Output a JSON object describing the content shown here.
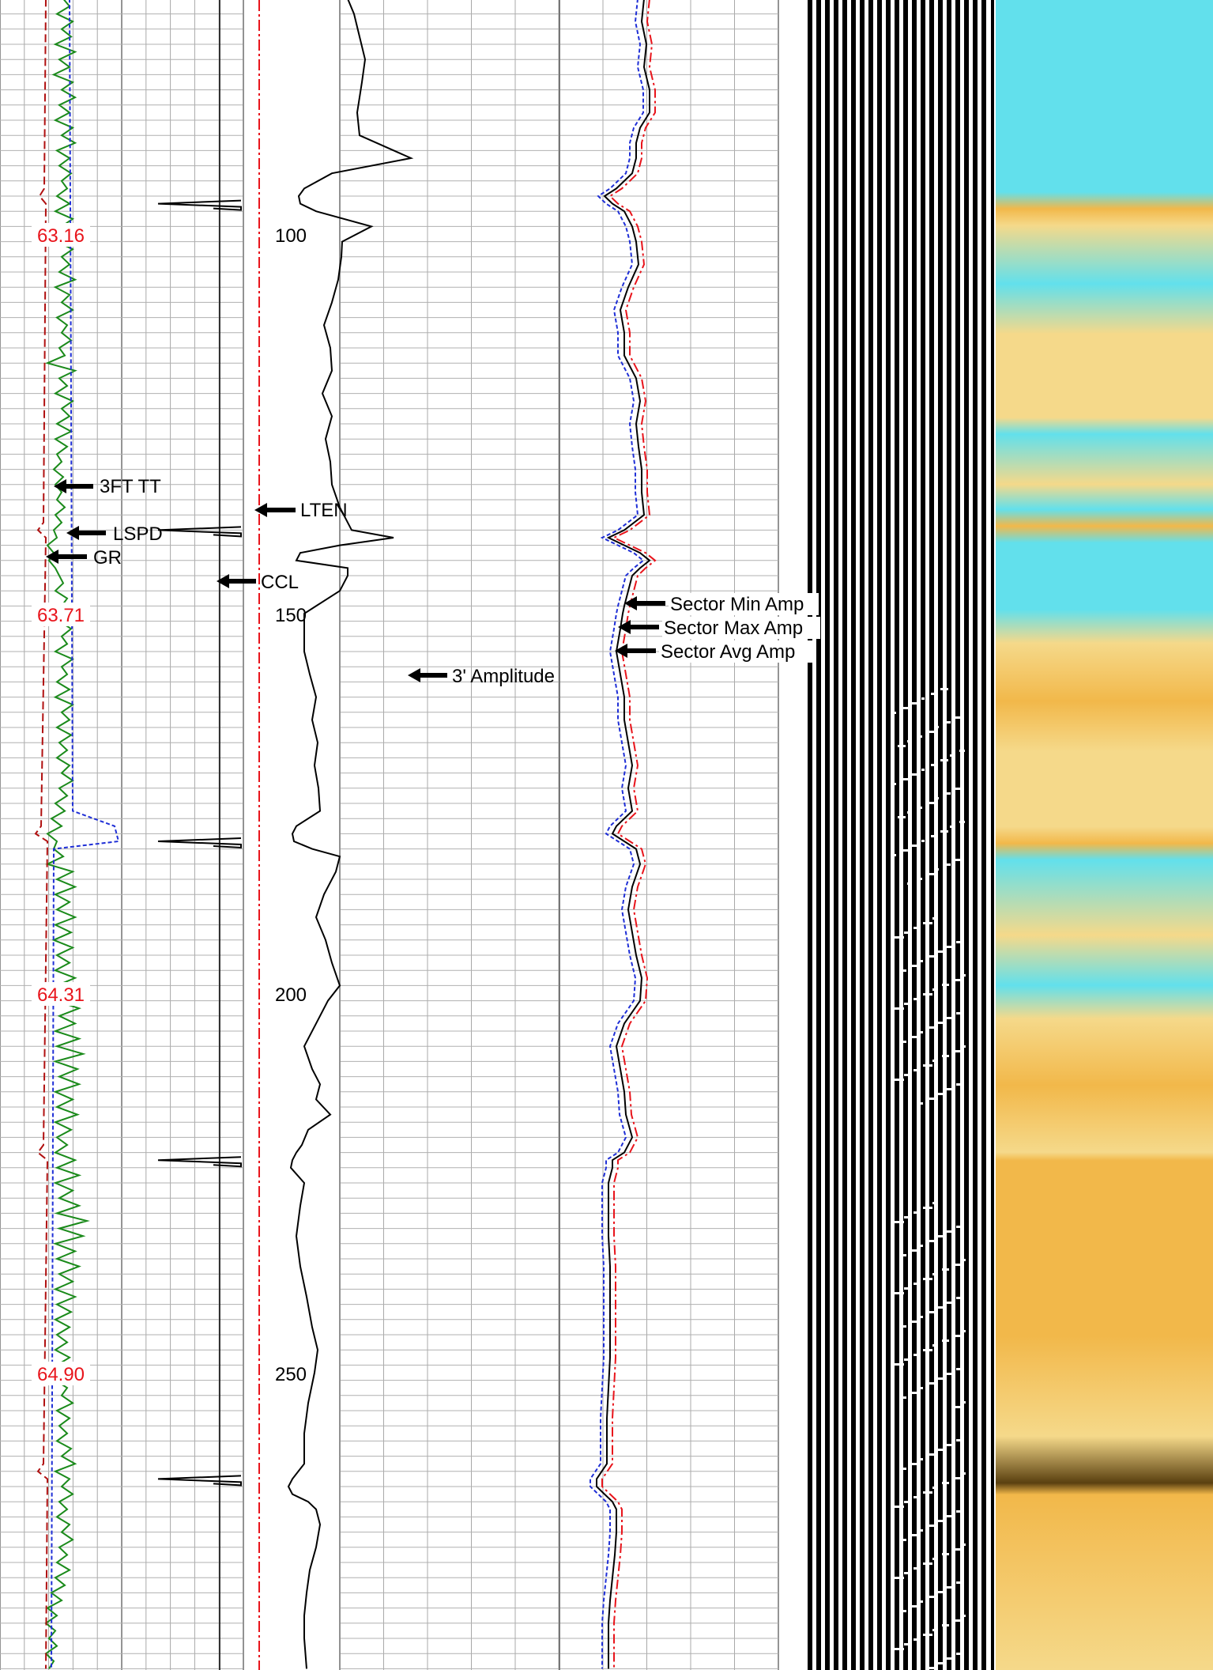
{
  "chart_data": {
    "type": "line",
    "title": "",
    "depth_labels": [
      {
        "depth": 100,
        "text": "100"
      },
      {
        "depth": 150,
        "text": "150"
      },
      {
        "depth": 200,
        "text": "200"
      },
      {
        "depth": 250,
        "text": "250"
      }
    ],
    "tension_labels": [
      {
        "depth": 100,
        "text": "63.16"
      },
      {
        "depth": 150,
        "text": "63.71"
      },
      {
        "depth": 200,
        "text": "64.31"
      },
      {
        "depth": 250,
        "text": "64.90"
      }
    ],
    "y_range": [
      69,
      289
    ],
    "colors": {
      "gr": "#1a8a1a",
      "lspd": "#1f2fd6",
      "tt": "#b01010",
      "lten": "#e8141b",
      "black": "#000000",
      "cyan": "#62e0ec",
      "yellow": "#f5d98a",
      "orange": "#f2b84a"
    },
    "curve_labels": {
      "tt": "3FT TT",
      "lspd": "LSPD",
      "gr": "GR",
      "lten": "LTEN",
      "ccl": "CCL",
      "amp3": "3' Amplitude",
      "smin": "Sector Min Amp",
      "smax": "Sector Max Amp",
      "savg": "Sector Avg Amp"
    },
    "ccl_spikes": [
      96,
      139,
      180,
      222,
      264
    ],
    "amp3_points": [
      [
        69,
        440
      ],
      [
        71,
        448
      ],
      [
        74,
        455
      ],
      [
        77,
        462
      ],
      [
        80,
        458
      ],
      [
        84,
        452
      ],
      [
        87,
        455
      ],
      [
        90,
        520
      ],
      [
        92,
        420
      ],
      [
        94,
        385
      ],
      [
        95,
        378
      ],
      [
        96,
        380
      ],
      [
        97,
        400
      ],
      [
        99,
        470
      ],
      [
        101,
        433
      ],
      [
        103,
        432
      ],
      [
        106,
        428
      ],
      [
        109,
        420
      ],
      [
        112,
        410
      ],
      [
        115,
        418
      ],
      [
        118,
        420
      ],
      [
        121,
        408
      ],
      [
        124,
        420
      ],
      [
        127,
        412
      ],
      [
        130,
        418
      ],
      [
        133,
        420
      ],
      [
        136,
        430
      ],
      [
        139,
        445
      ],
      [
        140,
        498
      ],
      [
        141,
        430
      ],
      [
        142,
        380
      ],
      [
        143,
        375
      ],
      [
        144,
        440
      ],
      [
        145,
        440
      ],
      [
        147,
        430
      ],
      [
        149,
        400
      ],
      [
        150,
        385
      ],
      [
        152,
        385
      ],
      [
        155,
        385
      ],
      [
        158,
        392
      ],
      [
        161,
        400
      ],
      [
        164,
        395
      ],
      [
        167,
        402
      ],
      [
        170,
        398
      ],
      [
        173,
        403
      ],
      [
        176,
        405
      ],
      [
        178,
        375
      ],
      [
        179,
        370
      ],
      [
        180,
        372
      ],
      [
        181,
        395
      ],
      [
        182,
        430
      ],
      [
        184,
        425
      ],
      [
        187,
        410
      ],
      [
        190,
        400
      ],
      [
        193,
        412
      ],
      [
        196,
        420
      ],
      [
        199,
        430
      ],
      [
        201,
        415
      ],
      [
        204,
        400
      ],
      [
        207,
        385
      ],
      [
        210,
        395
      ],
      [
        212,
        405
      ],
      [
        214,
        400
      ],
      [
        216,
        418
      ],
      [
        218,
        390
      ],
      [
        220,
        382
      ],
      [
        221,
        375
      ],
      [
        222,
        370
      ],
      [
        223,
        368
      ],
      [
        225,
        385
      ],
      [
        228,
        380
      ],
      [
        232,
        375
      ],
      [
        236,
        380
      ],
      [
        240,
        388
      ],
      [
        244,
        395
      ],
      [
        247,
        402
      ],
      [
        250,
        398
      ],
      [
        254,
        390
      ],
      [
        258,
        385
      ],
      [
        262,
        385
      ],
      [
        264,
        370
      ],
      [
        265,
        365
      ],
      [
        266,
        370
      ],
      [
        267,
        390
      ],
      [
        268,
        400
      ],
      [
        270,
        405
      ],
      [
        273,
        400
      ],
      [
        276,
        392
      ],
      [
        279,
        388
      ],
      [
        282,
        385
      ],
      [
        285,
        385
      ],
      [
        289,
        388
      ]
    ],
    "sector_avg_points": [
      [
        69,
        815
      ],
      [
        72,
        812
      ],
      [
        75,
        818
      ],
      [
        78,
        815
      ],
      [
        81,
        822
      ],
      [
        84,
        822
      ],
      [
        86,
        810
      ],
      [
        88,
        805
      ],
      [
        90,
        805
      ],
      [
        92,
        800
      ],
      [
        94,
        780
      ],
      [
        95,
        765
      ],
      [
        96,
        775
      ],
      [
        97,
        790
      ],
      [
        99,
        800
      ],
      [
        101,
        805
      ],
      [
        104,
        808
      ],
      [
        107,
        795
      ],
      [
        110,
        785
      ],
      [
        113,
        790
      ],
      [
        116,
        790
      ],
      [
        119,
        805
      ],
      [
        122,
        810
      ],
      [
        125,
        805
      ],
      [
        128,
        808
      ],
      [
        131,
        812
      ],
      [
        134,
        812
      ],
      [
        137,
        815
      ],
      [
        139,
        790
      ],
      [
        140,
        770
      ],
      [
        141,
        790
      ],
      [
        142,
        810
      ],
      [
        143,
        822
      ],
      [
        144,
        810
      ],
      [
        145,
        800
      ],
      [
        147,
        795
      ],
      [
        149,
        790
      ],
      [
        150,
        788
      ],
      [
        152,
        785
      ],
      [
        155,
        780
      ],
      [
        158,
        785
      ],
      [
        161,
        790
      ],
      [
        164,
        790
      ],
      [
        167,
        795
      ],
      [
        170,
        800
      ],
      [
        173,
        795
      ],
      [
        176,
        800
      ],
      [
        178,
        780
      ],
      [
        179,
        775
      ],
      [
        180,
        790
      ],
      [
        181,
        805
      ],
      [
        183,
        810
      ],
      [
        186,
        800
      ],
      [
        189,
        795
      ],
      [
        192,
        800
      ],
      [
        195,
        805
      ],
      [
        198,
        812
      ],
      [
        201,
        810
      ],
      [
        204,
        790
      ],
      [
        207,
        780
      ],
      [
        210,
        785
      ],
      [
        213,
        790
      ],
      [
        216,
        792
      ],
      [
        219,
        800
      ],
      [
        221,
        790
      ],
      [
        222,
        775
      ],
      [
        223,
        775
      ],
      [
        225,
        770
      ],
      [
        228,
        770
      ],
      [
        232,
        770
      ],
      [
        236,
        772
      ],
      [
        240,
        772
      ],
      [
        244,
        772
      ],
      [
        248,
        772
      ],
      [
        252,
        770
      ],
      [
        256,
        768
      ],
      [
        260,
        768
      ],
      [
        262,
        768
      ],
      [
        264,
        755
      ],
      [
        265,
        755
      ],
      [
        266,
        765
      ],
      [
        267,
        775
      ],
      [
        268,
        780
      ],
      [
        271,
        780
      ],
      [
        274,
        778
      ],
      [
        277,
        775
      ],
      [
        280,
        772
      ],
      [
        283,
        770
      ],
      [
        286,
        770
      ],
      [
        289,
        770
      ]
    ],
    "gr_points": [
      [
        69,
        80
      ],
      [
        70,
        88
      ],
      [
        71,
        72
      ],
      [
        72,
        92
      ],
      [
        73,
        78
      ],
      [
        74,
        90
      ],
      [
        75,
        70
      ],
      [
        76,
        95
      ],
      [
        77,
        75
      ],
      [
        78,
        88
      ],
      [
        79,
        68
      ],
      [
        80,
        92
      ],
      [
        81,
        78
      ],
      [
        82,
        95
      ],
      [
        83,
        75
      ],
      [
        84,
        88
      ],
      [
        85,
        70
      ],
      [
        86,
        92
      ],
      [
        87,
        78
      ],
      [
        88,
        95
      ],
      [
        89,
        72
      ],
      [
        90,
        88
      ],
      [
        91,
        75
      ],
      [
        92,
        90
      ],
      [
        93,
        78
      ],
      [
        94,
        85
      ],
      [
        95,
        72
      ],
      [
        96,
        88
      ],
      [
        97,
        70
      ],
      [
        98,
        92
      ],
      [
        99,
        78
      ],
      [
        100,
        85
      ],
      [
        101,
        72
      ],
      [
        102,
        92
      ],
      [
        103,
        78
      ],
      [
        104,
        88
      ],
      [
        105,
        75
      ],
      [
        106,
        95
      ],
      [
        107,
        70
      ],
      [
        108,
        88
      ],
      [
        109,
        78
      ],
      [
        110,
        92
      ],
      [
        111,
        72
      ],
      [
        112,
        85
      ],
      [
        113,
        78
      ],
      [
        114,
        90
      ],
      [
        115,
        75
      ],
      [
        116,
        82
      ],
      [
        117,
        60
      ],
      [
        118,
        95
      ],
      [
        119,
        75
      ],
      [
        120,
        85
      ],
      [
        121,
        70
      ],
      [
        122,
        92
      ],
      [
        123,
        78
      ],
      [
        124,
        88
      ],
      [
        125,
        72
      ],
      [
        126,
        90
      ],
      [
        127,
        70
      ],
      [
        128,
        85
      ],
      [
        129,
        72
      ],
      [
        130,
        78
      ],
      [
        131,
        68
      ],
      [
        132,
        80
      ],
      [
        133,
        70
      ],
      [
        134,
        78
      ],
      [
        135,
        72
      ],
      [
        136,
        82
      ],
      [
        137,
        70
      ],
      [
        138,
        78
      ],
      [
        139,
        68
      ],
      [
        140,
        72
      ],
      [
        141,
        60
      ],
      [
        142,
        68
      ],
      [
        143,
        62
      ],
      [
        144,
        70
      ],
      [
        145,
        75
      ],
      [
        146,
        80
      ],
      [
        147,
        70
      ],
      [
        148,
        85
      ],
      [
        149,
        78
      ],
      [
        150,
        82
      ],
      [
        151,
        75
      ],
      [
        152,
        90
      ],
      [
        153,
        78
      ],
      [
        154,
        85
      ],
      [
        155,
        70
      ],
      [
        156,
        92
      ],
      [
        157,
        78
      ],
      [
        158,
        85
      ],
      [
        159,
        72
      ],
      [
        160,
        88
      ],
      [
        161,
        70
      ],
      [
        162,
        92
      ],
      [
        163,
        78
      ],
      [
        164,
        88
      ],
      [
        165,
        72
      ],
      [
        166,
        90
      ],
      [
        167,
        75
      ],
      [
        168,
        85
      ],
      [
        169,
        72
      ],
      [
        170,
        88
      ],
      [
        171,
        78
      ],
      [
        172,
        92
      ],
      [
        173,
        75
      ],
      [
        174,
        85
      ],
      [
        175,
        70
      ],
      [
        176,
        82
      ],
      [
        177,
        65
      ],
      [
        178,
        78
      ],
      [
        179,
        60
      ],
      [
        180,
        72
      ],
      [
        181,
        68
      ],
      [
        182,
        80
      ],
      [
        183,
        60
      ],
      [
        184,
        92
      ],
      [
        185,
        72
      ],
      [
        186,
        95
      ],
      [
        187,
        70
      ],
      [
        188,
        88
      ],
      [
        189,
        72
      ],
      [
        190,
        95
      ],
      [
        191,
        70
      ],
      [
        192,
        90
      ],
      [
        193,
        68
      ],
      [
        194,
        92
      ],
      [
        195,
        72
      ],
      [
        196,
        88
      ],
      [
        197,
        70
      ],
      [
        198,
        95
      ],
      [
        199,
        72
      ],
      [
        200,
        90
      ],
      [
        201,
        70
      ],
      [
        202,
        100
      ],
      [
        203,
        75
      ],
      [
        204,
        95
      ],
      [
        205,
        70
      ],
      [
        206,
        100
      ],
      [
        207,
        72
      ],
      [
        208,
        105
      ],
      [
        209,
        70
      ],
      [
        210,
        98
      ],
      [
        211,
        75
      ],
      [
        212,
        100
      ],
      [
        213,
        70
      ],
      [
        214,
        92
      ],
      [
        215,
        72
      ],
      [
        216,
        98
      ],
      [
        217,
        70
      ],
      [
        218,
        90
      ],
      [
        219,
        72
      ],
      [
        220,
        85
      ],
      [
        221,
        70
      ],
      [
        222,
        95
      ],
      [
        223,
        72
      ],
      [
        224,
        100
      ],
      [
        225,
        70
      ],
      [
        226,
        92
      ],
      [
        227,
        75
      ],
      [
        228,
        100
      ],
      [
        229,
        72
      ],
      [
        230,
        110
      ],
      [
        231,
        75
      ],
      [
        232,
        105
      ],
      [
        233,
        70
      ],
      [
        234,
        95
      ],
      [
        235,
        72
      ],
      [
        236,
        100
      ],
      [
        237,
        75
      ],
      [
        238,
        92
      ],
      [
        239,
        70
      ],
      [
        240,
        95
      ],
      [
        241,
        72
      ],
      [
        242,
        90
      ],
      [
        243,
        70
      ],
      [
        244,
        88
      ],
      [
        245,
        72
      ],
      [
        246,
        85
      ],
      [
        247,
        70
      ],
      [
        248,
        88
      ],
      [
        249,
        72
      ],
      [
        250,
        92
      ],
      [
        251,
        70
      ],
      [
        252,
        85
      ],
      [
        253,
        78
      ],
      [
        254,
        92
      ],
      [
        255,
        72
      ],
      [
        256,
        88
      ],
      [
        257,
        75
      ],
      [
        258,
        85
      ],
      [
        259,
        72
      ],
      [
        260,
        90
      ],
      [
        261,
        78
      ],
      [
        262,
        95
      ],
      [
        263,
        70
      ],
      [
        264,
        88
      ],
      [
        265,
        78
      ],
      [
        266,
        92
      ],
      [
        267,
        75
      ],
      [
        268,
        85
      ],
      [
        269,
        72
      ],
      [
        270,
        88
      ],
      [
        271,
        78
      ],
      [
        272,
        92
      ],
      [
        273,
        75
      ],
      [
        274,
        85
      ],
      [
        275,
        72
      ],
      [
        276,
        88
      ],
      [
        277,
        70
      ],
      [
        278,
        82
      ],
      [
        279,
        65
      ],
      [
        280,
        78
      ],
      [
        281,
        60
      ],
      [
        282,
        72
      ],
      [
        283,
        58
      ],
      [
        284,
        70
      ],
      [
        285,
        62
      ],
      [
        286,
        72
      ],
      [
        287,
        58
      ],
      [
        288,
        68
      ],
      [
        289,
        62
      ]
    ]
  }
}
